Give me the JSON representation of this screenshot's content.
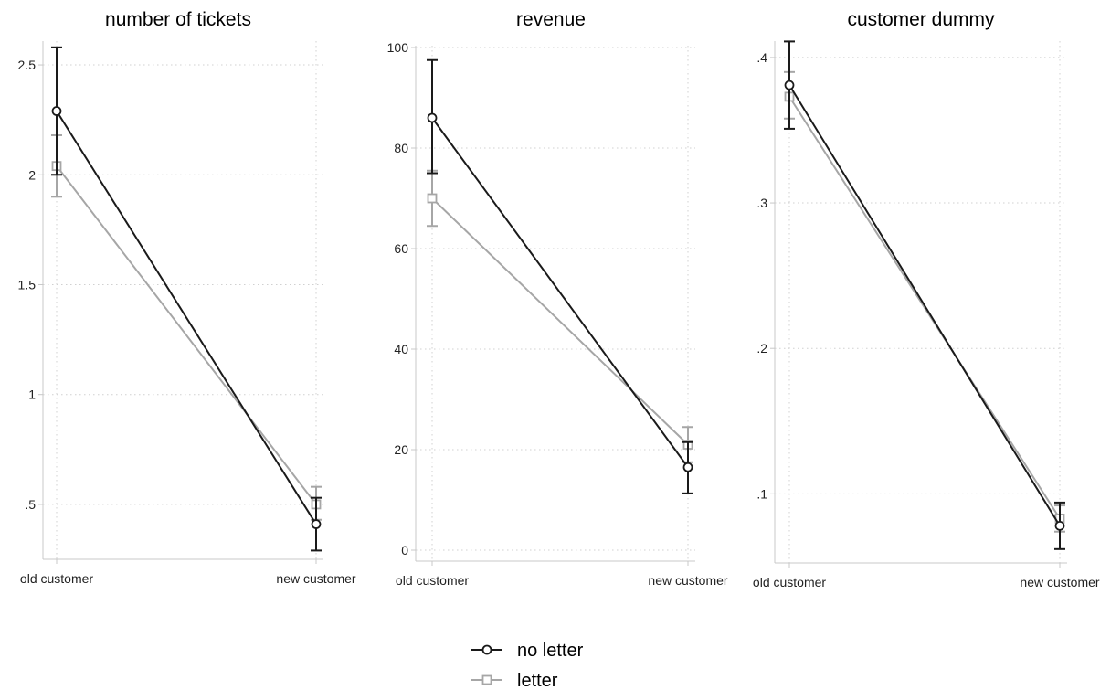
{
  "chart_data": [
    {
      "type": "line",
      "title": "number of tickets",
      "categories": [
        "old customer",
        "new customer"
      ],
      "yticks": [
        0.5,
        1,
        1.5,
        2,
        2.5
      ],
      "ytick_labels": [
        ".5",
        "1",
        "1.5",
        "2",
        "2.5"
      ],
      "ylim": [
        0.3,
        2.6
      ],
      "grid": true,
      "series": [
        {
          "name": "no letter",
          "values": [
            2.29,
            0.41
          ],
          "ci_low": [
            2.0,
            0.29
          ],
          "ci_high": [
            2.58,
            0.53
          ],
          "color": "#1a1a1a",
          "marker": "circle"
        },
        {
          "name": "letter",
          "values": [
            2.04,
            0.5
          ],
          "ci_low": [
            1.9,
            0.43
          ],
          "ci_high": [
            2.18,
            0.58
          ],
          "color": "#a6a6a6",
          "marker": "square"
        }
      ]
    },
    {
      "type": "line",
      "title": "revenue",
      "categories": [
        "old customer",
        "new customer"
      ],
      "yticks": [
        0,
        20,
        40,
        60,
        80,
        100
      ],
      "ytick_labels": [
        "0",
        "20",
        "40",
        "60",
        "80",
        "100"
      ],
      "ylim": [
        0,
        100
      ],
      "grid": true,
      "series": [
        {
          "name": "no letter",
          "values": [
            86,
            16.5
          ],
          "ci_low": [
            75,
            11.3
          ],
          "ci_high": [
            97.5,
            21.5
          ],
          "color": "#1a1a1a",
          "marker": "circle"
        },
        {
          "name": "letter",
          "values": [
            70,
            21
          ],
          "ci_low": [
            64.5,
            17.5
          ],
          "ci_high": [
            75.5,
            24.5
          ],
          "color": "#a6a6a6",
          "marker": "square"
        }
      ]
    },
    {
      "type": "line",
      "title": "customer dummy",
      "categories": [
        "old customer",
        "new customer"
      ],
      "yticks": [
        0.1,
        0.2,
        0.3,
        0.4
      ],
      "ytick_labels": [
        ".1",
        ".2",
        ".3",
        ".4"
      ],
      "ylim": [
        0.06,
        0.41
      ],
      "grid": true,
      "series": [
        {
          "name": "no letter",
          "values": [
            0.381,
            0.078
          ],
          "ci_low": [
            0.351,
            0.062
          ],
          "ci_high": [
            0.411,
            0.094
          ],
          "color": "#1a1a1a",
          "marker": "circle"
        },
        {
          "name": "letter",
          "values": [
            0.373,
            0.083
          ],
          "ci_low": [
            0.358,
            0.074
          ],
          "ci_high": [
            0.39,
            0.092
          ],
          "color": "#a6a6a6",
          "marker": "square"
        }
      ]
    }
  ],
  "legend": {
    "placement": "bottom-center",
    "items": [
      {
        "label": "no letter",
        "color": "#1a1a1a",
        "marker": "circle"
      },
      {
        "label": "letter",
        "color": "#a6a6a6",
        "marker": "square"
      }
    ]
  }
}
